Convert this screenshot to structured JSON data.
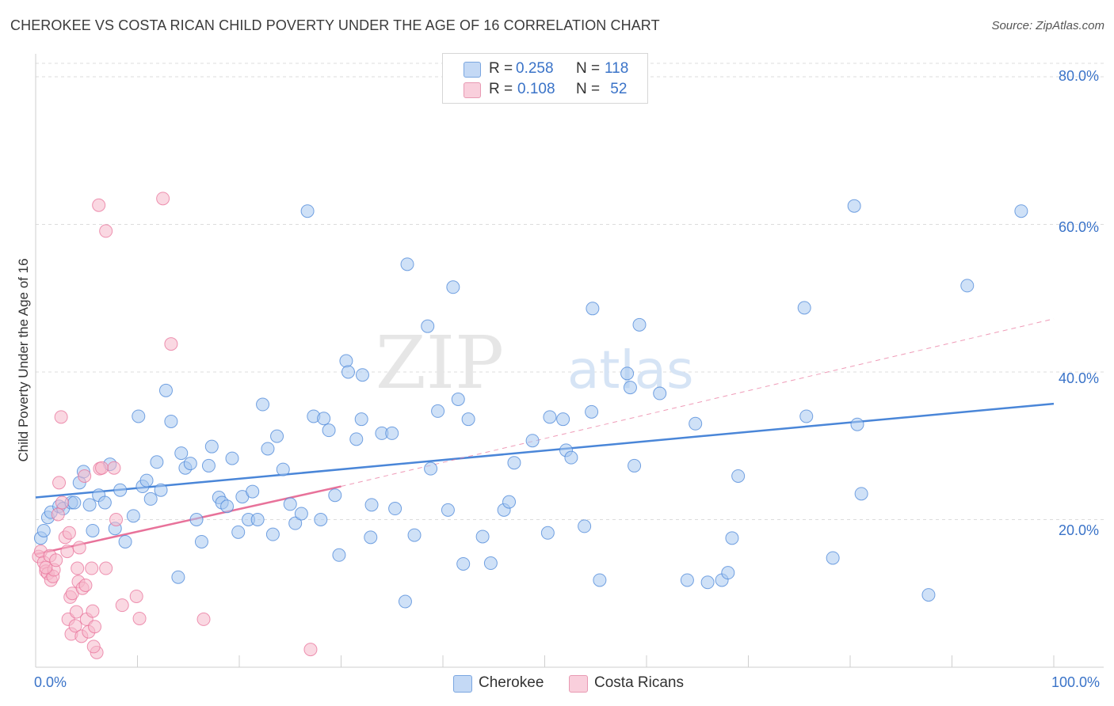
{
  "title": "CHEROKEE VS COSTA RICAN CHILD POVERTY UNDER THE AGE OF 16 CORRELATION CHART",
  "source": "Source: ZipAtlas.com",
  "watermark": {
    "zip": "ZIP",
    "atlas": "atlas"
  },
  "legend": {
    "rows": [
      {
        "r_label": "R = ",
        "r_value": "0.258",
        "n_label": "N = ",
        "n_value": "118",
        "color": "#a8c8f0"
      },
      {
        "r_label": "R = ",
        "r_value": "0.108",
        "n_label": "N = ",
        "n_value": " 52",
        "color": "#f5b8cb"
      }
    ]
  },
  "bottom_legend": [
    {
      "label": "Cherokee",
      "color": "#a8c8f0"
    },
    {
      "label": "Costa Ricans",
      "color": "#f5b8cb"
    }
  ],
  "chart_data": {
    "type": "scatter",
    "title": "CHEROKEE VS COSTA RICAN CHILD POVERTY UNDER THE AGE OF 16 CORRELATION CHART",
    "xlabel": "",
    "ylabel": "Child Poverty Under the Age of 16",
    "xlim": [
      0,
      100
    ],
    "ylim": [
      0,
      80
    ],
    "x_tick_labels": [
      "0.0%",
      "100.0%"
    ],
    "y_ticks": [
      20,
      40,
      60,
      80
    ],
    "y_tick_labels": [
      "20.0%",
      "40.0%",
      "60.0%",
      "80.0%"
    ],
    "grid": true,
    "series": [
      {
        "name": "Cherokee",
        "color": "#4a86d8",
        "fill": "#a8c8f0",
        "trend": {
          "x0": 0,
          "y0": 23.0,
          "x1": 100,
          "y1": 35.7,
          "style": "solid"
        },
        "points": [
          [
            0.5,
            17.5
          ],
          [
            0.8,
            18.5
          ],
          [
            1.2,
            20.3
          ],
          [
            1.5,
            21.0
          ],
          [
            2.3,
            21.8
          ],
          [
            2.7,
            21.5
          ],
          [
            3.5,
            22.3
          ],
          [
            3.8,
            22.3
          ],
          [
            4.3,
            25.0
          ],
          [
            4.7,
            26.5
          ],
          [
            5.3,
            22.0
          ],
          [
            5.6,
            18.5
          ],
          [
            6.2,
            23.3
          ],
          [
            6.8,
            22.3
          ],
          [
            7.3,
            27.5
          ],
          [
            7.8,
            18.8
          ],
          [
            8.3,
            24.0
          ],
          [
            8.8,
            17.0
          ],
          [
            9.6,
            20.5
          ],
          [
            10.1,
            34.0
          ],
          [
            10.5,
            24.5
          ],
          [
            10.9,
            25.3
          ],
          [
            11.3,
            22.8
          ],
          [
            11.9,
            27.8
          ],
          [
            12.3,
            24.0
          ],
          [
            12.8,
            37.5
          ],
          [
            13.3,
            33.3
          ],
          [
            14.0,
            12.2
          ],
          [
            14.3,
            29.0
          ],
          [
            14.7,
            27.0
          ],
          [
            15.2,
            27.6
          ],
          [
            15.8,
            20.0
          ],
          [
            16.3,
            17.0
          ],
          [
            17.0,
            27.3
          ],
          [
            17.3,
            29.9
          ],
          [
            18.0,
            23.0
          ],
          [
            18.3,
            22.3
          ],
          [
            18.8,
            21.8
          ],
          [
            19.3,
            28.3
          ],
          [
            19.9,
            18.3
          ],
          [
            20.3,
            23.1
          ],
          [
            20.9,
            20.0
          ],
          [
            21.3,
            23.8
          ],
          [
            21.8,
            20.0
          ],
          [
            22.3,
            35.6
          ],
          [
            22.8,
            29.6
          ],
          [
            23.3,
            18.0
          ],
          [
            23.7,
            31.3
          ],
          [
            24.3,
            26.8
          ],
          [
            25.0,
            22.1
          ],
          [
            25.5,
            19.5
          ],
          [
            26.1,
            20.8
          ],
          [
            26.7,
            61.8
          ],
          [
            27.3,
            34.0
          ],
          [
            28.0,
            20.0
          ],
          [
            28.3,
            33.7
          ],
          [
            28.8,
            32.1
          ],
          [
            29.4,
            23.3
          ],
          [
            29.8,
            15.2
          ],
          [
            30.5,
            41.5
          ],
          [
            30.7,
            40.0
          ],
          [
            31.5,
            30.9
          ],
          [
            32.0,
            33.6
          ],
          [
            32.1,
            39.6
          ],
          [
            32.9,
            17.6
          ],
          [
            33.0,
            22.0
          ],
          [
            34.0,
            31.7
          ],
          [
            35.0,
            31.7
          ],
          [
            35.3,
            21.5
          ],
          [
            36.3,
            8.9
          ],
          [
            36.5,
            54.6
          ],
          [
            37.2,
            17.9
          ],
          [
            38.5,
            46.2
          ],
          [
            38.8,
            26.9
          ],
          [
            39.5,
            34.7
          ],
          [
            40.5,
            21.3
          ],
          [
            41.0,
            51.5
          ],
          [
            41.5,
            36.3
          ],
          [
            42.0,
            14.0
          ],
          [
            42.5,
            33.6
          ],
          [
            43.9,
            17.7
          ],
          [
            44.7,
            14.1
          ],
          [
            46.0,
            21.3
          ],
          [
            46.5,
            22.4
          ],
          [
            47.0,
            27.7
          ],
          [
            48.8,
            30.7
          ],
          [
            50.3,
            18.2
          ],
          [
            50.5,
            33.9
          ],
          [
            51.8,
            33.6
          ],
          [
            52.1,
            29.4
          ],
          [
            52.6,
            28.4
          ],
          [
            53.9,
            19.1
          ],
          [
            54.6,
            34.6
          ],
          [
            54.7,
            48.6
          ],
          [
            55.4,
            11.8
          ],
          [
            58.1,
            39.8
          ],
          [
            58.4,
            37.9
          ],
          [
            58.8,
            27.3
          ],
          [
            59.3,
            46.4
          ],
          [
            61.3,
            37.1
          ],
          [
            64.0,
            11.8
          ],
          [
            64.8,
            33.0
          ],
          [
            66.0,
            11.5
          ],
          [
            67.4,
            11.8
          ],
          [
            68.0,
            12.8
          ],
          [
            68.4,
            17.5
          ],
          [
            69.0,
            25.9
          ],
          [
            75.5,
            48.7
          ],
          [
            75.7,
            34.0
          ],
          [
            78.3,
            14.8
          ],
          [
            80.4,
            62.5
          ],
          [
            80.7,
            32.9
          ],
          [
            81.1,
            23.5
          ],
          [
            87.7,
            9.8
          ],
          [
            91.5,
            51.7
          ],
          [
            96.8,
            61.8
          ]
        ]
      },
      {
        "name": "Costa Ricans",
        "color": "#e8729a",
        "fill": "#f5b8cb",
        "trend": {
          "x0": 0,
          "y0": 15.3,
          "x1": 30,
          "y1": 24.5,
          "style": "solid"
        },
        "trend_extended": {
          "x0": 30,
          "y0": 24.5,
          "x1": 100,
          "y1": 47.2,
          "style": "dashed"
        },
        "points": [
          [
            0.3,
            15.0
          ],
          [
            0.5,
            15.7
          ],
          [
            0.8,
            14.2
          ],
          [
            1.0,
            13.0
          ],
          [
            1.2,
            12.7
          ],
          [
            1.4,
            15.1
          ],
          [
            1.5,
            11.8
          ],
          [
            1.7,
            12.3
          ],
          [
            1.8,
            13.2
          ],
          [
            2.0,
            14.5
          ],
          [
            2.2,
            20.7
          ],
          [
            2.3,
            25.0
          ],
          [
            2.6,
            22.3
          ],
          [
            2.9,
            17.6
          ],
          [
            3.1,
            15.7
          ],
          [
            3.2,
            6.5
          ],
          [
            3.4,
            9.5
          ],
          [
            3.5,
            4.5
          ],
          [
            3.6,
            10.0
          ],
          [
            3.9,
            5.6
          ],
          [
            4.0,
            7.5
          ],
          [
            4.1,
            13.4
          ],
          [
            4.2,
            11.6
          ],
          [
            4.3,
            16.2
          ],
          [
            4.5,
            4.2
          ],
          [
            4.6,
            10.7
          ],
          [
            4.8,
            25.9
          ],
          [
            4.9,
            11.1
          ],
          [
            5.0,
            6.5
          ],
          [
            5.2,
            4.8
          ],
          [
            5.5,
            13.4
          ],
          [
            5.6,
            7.6
          ],
          [
            5.8,
            5.5
          ],
          [
            6.0,
            2.0
          ],
          [
            6.3,
            26.9
          ],
          [
            6.5,
            27.0
          ],
          [
            6.9,
            59.1
          ],
          [
            6.9,
            13.4
          ],
          [
            7.7,
            27.0
          ],
          [
            7.9,
            20.0
          ],
          [
            8.5,
            8.4
          ],
          [
            9.9,
            9.6
          ],
          [
            10.2,
            6.6
          ],
          [
            12.5,
            63.5
          ],
          [
            13.3,
            43.8
          ],
          [
            16.5,
            6.5
          ],
          [
            27.0,
            2.4
          ],
          [
            6.2,
            62.6
          ],
          [
            1.0,
            13.5
          ],
          [
            2.5,
            33.9
          ],
          [
            5.7,
            2.8
          ],
          [
            3.3,
            18.2
          ]
        ]
      }
    ]
  }
}
